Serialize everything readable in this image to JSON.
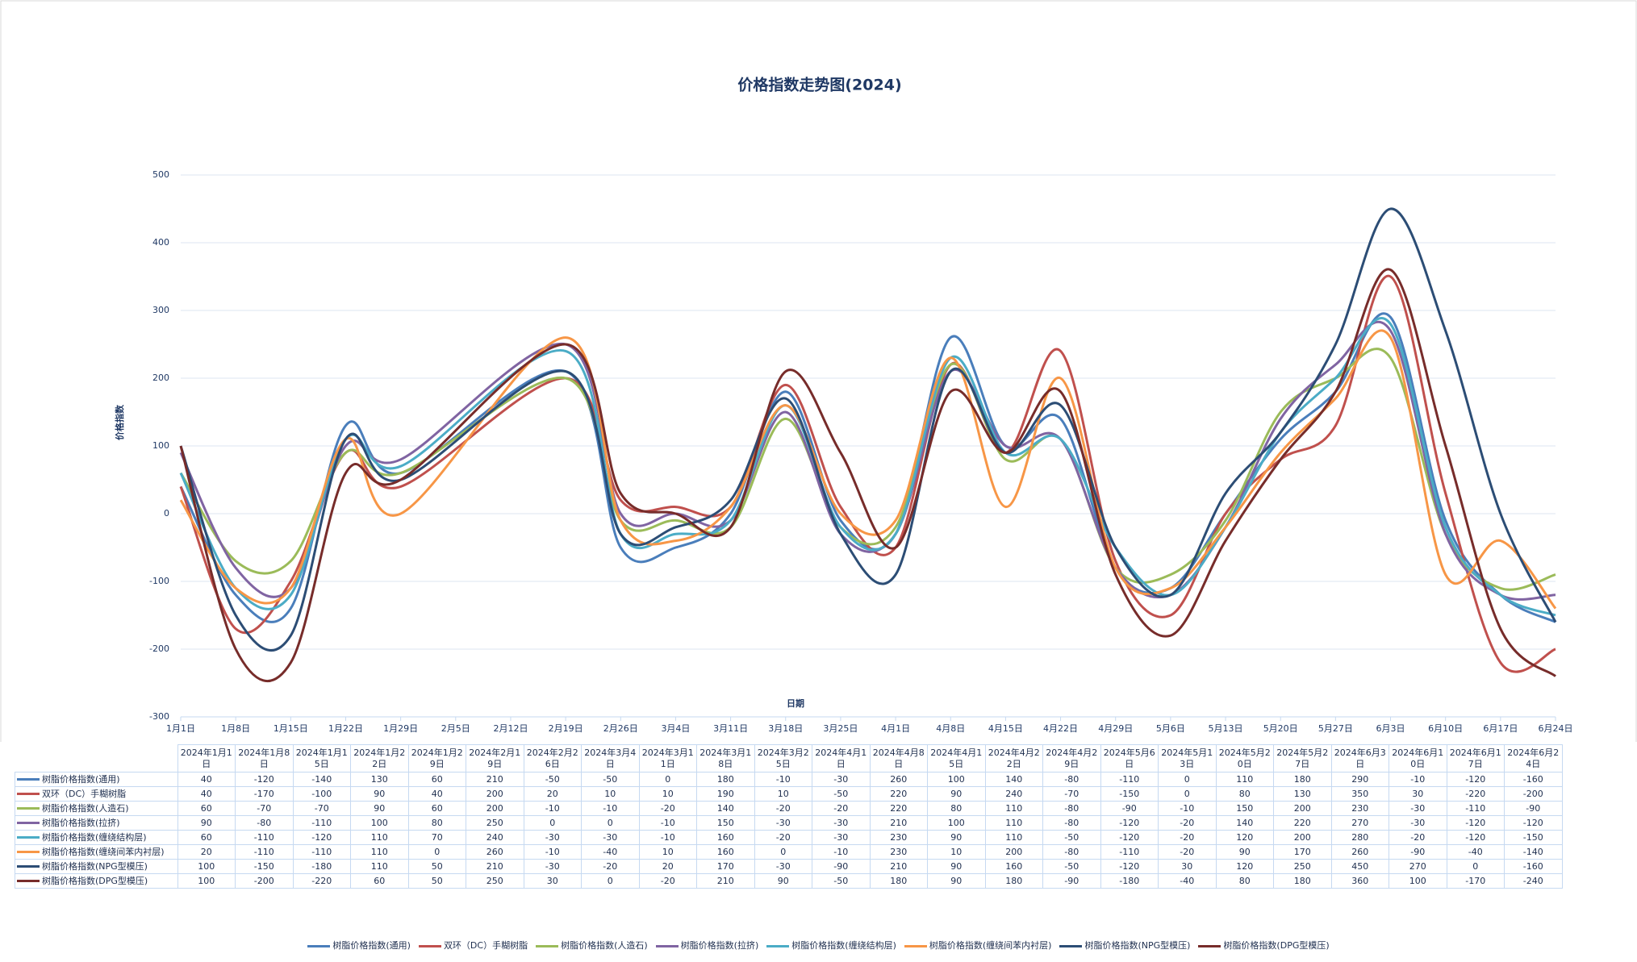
{
  "chart_data": {
    "type": "line",
    "title": "价格指数走势图(2024)",
    "x_label": "日期",
    "y_label": "价格指数",
    "categories": [
      "2024年1月1日",
      "2024年1月8日",
      "2024年1月15日",
      "2024年1月22日",
      "2024年1月29日",
      "2024年2月19日",
      "2024年2月26日",
      "2024年3月4日",
      "2024年3月11日",
      "2024年3月18日",
      "2024年3月25日",
      "2024年4月1日",
      "2024年4月8日",
      "2024年4月15日",
      "2024年4月22日",
      "2024年4月29日",
      "2024年5月6日",
      "2024年5月13日",
      "2024年5月20日",
      "2024年5月27日",
      "2024年6月3日",
      "2024年6月10日",
      "2024年6月17日",
      "2024年6月24日"
    ],
    "xticks": [
      "1月1日",
      "1月8日",
      "1月15日",
      "1月22日",
      "1月29日",
      "2月5日",
      "2月12日",
      "2月19日",
      "2月26日",
      "3月4日",
      "3月11日",
      "3月18日",
      "3月25日",
      "4月1日",
      "4月8日",
      "4月15日",
      "4月22日",
      "4月29日",
      "5月6日",
      "5月13日",
      "5月20日",
      "5月27日",
      "6月3日",
      "6月10日",
      "6月17日",
      "6月24日"
    ],
    "ylim": [
      -300,
      500
    ],
    "yticks": [
      -300,
      -200,
      -100,
      0,
      100,
      200,
      300,
      400,
      500
    ],
    "grid": true,
    "legend": "bottom",
    "series": [
      {
        "name": "树脂价格指数(通用)",
        "color": "#4a7ebb",
        "values": [
          40,
          -120,
          -140,
          130,
          60,
          210,
          -50,
          -50,
          0,
          180,
          -10,
          -30,
          260,
          100,
          140,
          -80,
          -110,
          0,
          110,
          180,
          290,
          -10,
          -120,
          -160
        ]
      },
      {
        "name": "双环（DC）手糊树脂",
        "color": "#c0504d",
        "values": [
          40,
          -170,
          -100,
          90,
          40,
          200,
          20,
          10,
          10,
          190,
          10,
          -50,
          220,
          90,
          240,
          -70,
          -150,
          0,
          80,
          130,
          350,
          30,
          -220,
          -200
        ]
      },
      {
        "name": "树脂价格指数(人造石)",
        "color": "#9bbb59",
        "values": [
          60,
          -70,
          -70,
          90,
          60,
          200,
          -10,
          -10,
          -20,
          140,
          -20,
          -20,
          220,
          80,
          110,
          -80,
          -90,
          -10,
          150,
          200,
          230,
          -30,
          -110,
          -90
        ]
      },
      {
        "name": "树脂价格指数(拉挤)",
        "color": "#8064a2",
        "values": [
          90,
          -80,
          -110,
          100,
          80,
          250,
          0,
          0,
          -10,
          150,
          -30,
          -30,
          210,
          100,
          110,
          -80,
          -120,
          -20,
          140,
          220,
          270,
          -30,
          -120,
          -120
        ]
      },
      {
        "name": "树脂价格指数(缠绕结构层)",
        "color": "#4bacc6",
        "values": [
          60,
          -110,
          -120,
          110,
          70,
          240,
          -30,
          -30,
          -10,
          160,
          -20,
          -30,
          230,
          90,
          110,
          -50,
          -120,
          -20,
          120,
          200,
          280,
          -20,
          -120,
          -150
        ]
      },
      {
        "name": "树脂价格指数(缠绕间苯内衬层)",
        "color": "#f79646",
        "values": [
          20,
          -110,
          -110,
          110,
          0,
          260,
          -10,
          -40,
          10,
          160,
          0,
          -10,
          230,
          10,
          200,
          -80,
          -110,
          -20,
          90,
          170,
          260,
          -90,
          -40,
          -140
        ]
      },
      {
        "name": "树脂价格指数(NPG型模压)",
        "color": "#2c4d75",
        "values": [
          100,
          -150,
          -180,
          110,
          50,
          210,
          -30,
          -20,
          20,
          170,
          -30,
          -90,
          210,
          90,
          160,
          -50,
          -120,
          30,
          120,
          250,
          450,
          270,
          0,
          -160
        ]
      },
      {
        "name": "树脂价格指数(DPG型模压)",
        "color": "#772c2a",
        "values": [
          100,
          -200,
          -220,
          60,
          50,
          250,
          30,
          0,
          -20,
          210,
          90,
          -50,
          180,
          90,
          180,
          -90,
          -180,
          -40,
          80,
          180,
          360,
          100,
          -170,
          -240
        ]
      }
    ]
  }
}
